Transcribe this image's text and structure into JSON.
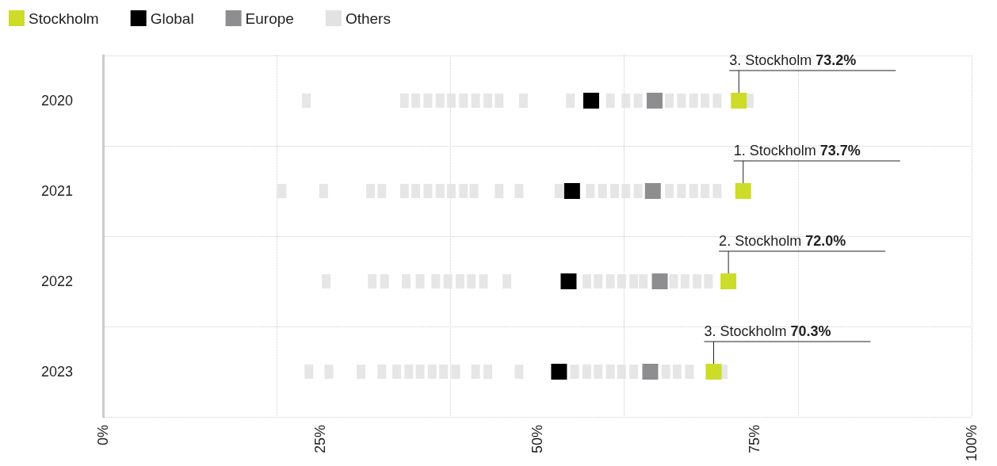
{
  "chart_data": {
    "type": "scatter",
    "orientation": "horizontal",
    "categories": [
      "2020",
      "2021",
      "2022",
      "2023"
    ],
    "xlim": [
      0,
      100
    ],
    "xticks": [
      {
        "value": 0,
        "label": "0%"
      },
      {
        "value": 25,
        "label": "25%"
      },
      {
        "value": 50,
        "label": "50%"
      },
      {
        "value": 75,
        "label": "75%"
      },
      {
        "value": 100,
        "label": "100%"
      }
    ],
    "grid": true,
    "legend": "top left",
    "marker": "square",
    "series": [
      {
        "name": "Stockholm",
        "color": "#cddc29",
        "values": [
          73.2,
          73.7,
          72.0,
          70.3
        ]
      },
      {
        "name": "Global",
        "color": "#000000",
        "values": [
          56.2,
          54.0,
          53.6,
          52.5
        ]
      },
      {
        "name": "Europe",
        "color": "#8e8e90",
        "values": [
          63.5,
          63.3,
          64.1,
          63.0
        ]
      },
      {
        "name": "Others",
        "color": "#e2e2e2",
        "values": [
          23.4,
          20.6,
          25.7,
          23.7
        ]
      },
      {
        "color": "#e2e2e2",
        "values": [
          34.7,
          25.4,
          31.0,
          26.0
        ]
      },
      {
        "color": "#e2e2e2",
        "values": [
          36.0,
          30.8,
          32.4,
          29.7
        ]
      },
      {
        "color": "#e2e2e2",
        "values": [
          37.4,
          32.1,
          34.9,
          32.1
        ]
      },
      {
        "color": "#e2e2e2",
        "values": [
          38.8,
          34.7,
          36.5,
          33.8
        ]
      },
      {
        "color": "#e2e2e2",
        "values": [
          40.1,
          36.0,
          38.3,
          35.2
        ]
      },
      {
        "color": "#e2e2e2",
        "values": [
          41.5,
          37.4,
          39.7,
          36.5
        ]
      },
      {
        "color": "#e2e2e2",
        "values": [
          42.9,
          38.8,
          41.1,
          37.9
        ]
      },
      {
        "color": "#e2e2e2",
        "values": [
          44.3,
          40.1,
          42.4,
          39.2
        ]
      },
      {
        "color": "#e2e2e2",
        "values": [
          45.6,
          41.5,
          43.8,
          40.6
        ]
      },
      {
        "color": "#e2e2e2",
        "values": [
          48.4,
          42.7,
          46.5,
          42.9
        ]
      },
      {
        "color": "#e2e2e2",
        "values": [
          53.8,
          45.6,
          55.7,
          44.3
        ]
      },
      {
        "color": "#e2e2e2",
        "values": [
          58.4,
          47.9,
          57.0,
          47.9
        ]
      },
      {
        "color": "#e2e2e2",
        "values": [
          60.2,
          52.5,
          58.4,
          54.3
        ]
      },
      {
        "color": "#e2e2e2",
        "values": [
          61.6,
          56.1,
          59.7,
          55.7
        ]
      },
      {
        "color": "#e2e2e2",
        "values": [
          65.2,
          57.5,
          61.1,
          57.0
        ]
      },
      {
        "color": "#e2e2e2",
        "values": [
          66.6,
          58.9,
          62.2,
          58.4
        ]
      },
      {
        "color": "#e2e2e2",
        "values": [
          68.0,
          60.2,
          65.7,
          59.7
        ]
      },
      {
        "color": "#e2e2e2",
        "values": [
          69.3,
          61.6,
          67.0,
          61.1
        ]
      },
      {
        "color": "#e2e2e2",
        "values": [
          70.7,
          65.2,
          68.4,
          64.8
        ]
      },
      {
        "color": "#e2e2e2",
        "values": [
          74.4,
          66.6,
          69.7,
          66.1
        ]
      },
      {
        "color": "#e2e2e2",
        "values": [
          null,
          68.0,
          null,
          67.5
        ]
      },
      {
        "color": "#e2e2e2",
        "values": [
          null,
          69.3,
          null,
          71.4
        ]
      },
      {
        "color": "#e2e2e2",
        "values": [
          null,
          70.7,
          null,
          null
        ]
      }
    ],
    "annotations": [
      {
        "text": "3. Stockholm 73.2%",
        "x": 73.2,
        "y": "2020"
      },
      {
        "text": "1. Stockholm 73.7%",
        "x": 73.7,
        "y": "2021"
      },
      {
        "text": "2. Stockholm 72.0%",
        "x": 72.0,
        "y": "2022"
      },
      {
        "text": "3. Stockholm 70.3%",
        "x": 70.3,
        "y": "2023"
      }
    ]
  }
}
